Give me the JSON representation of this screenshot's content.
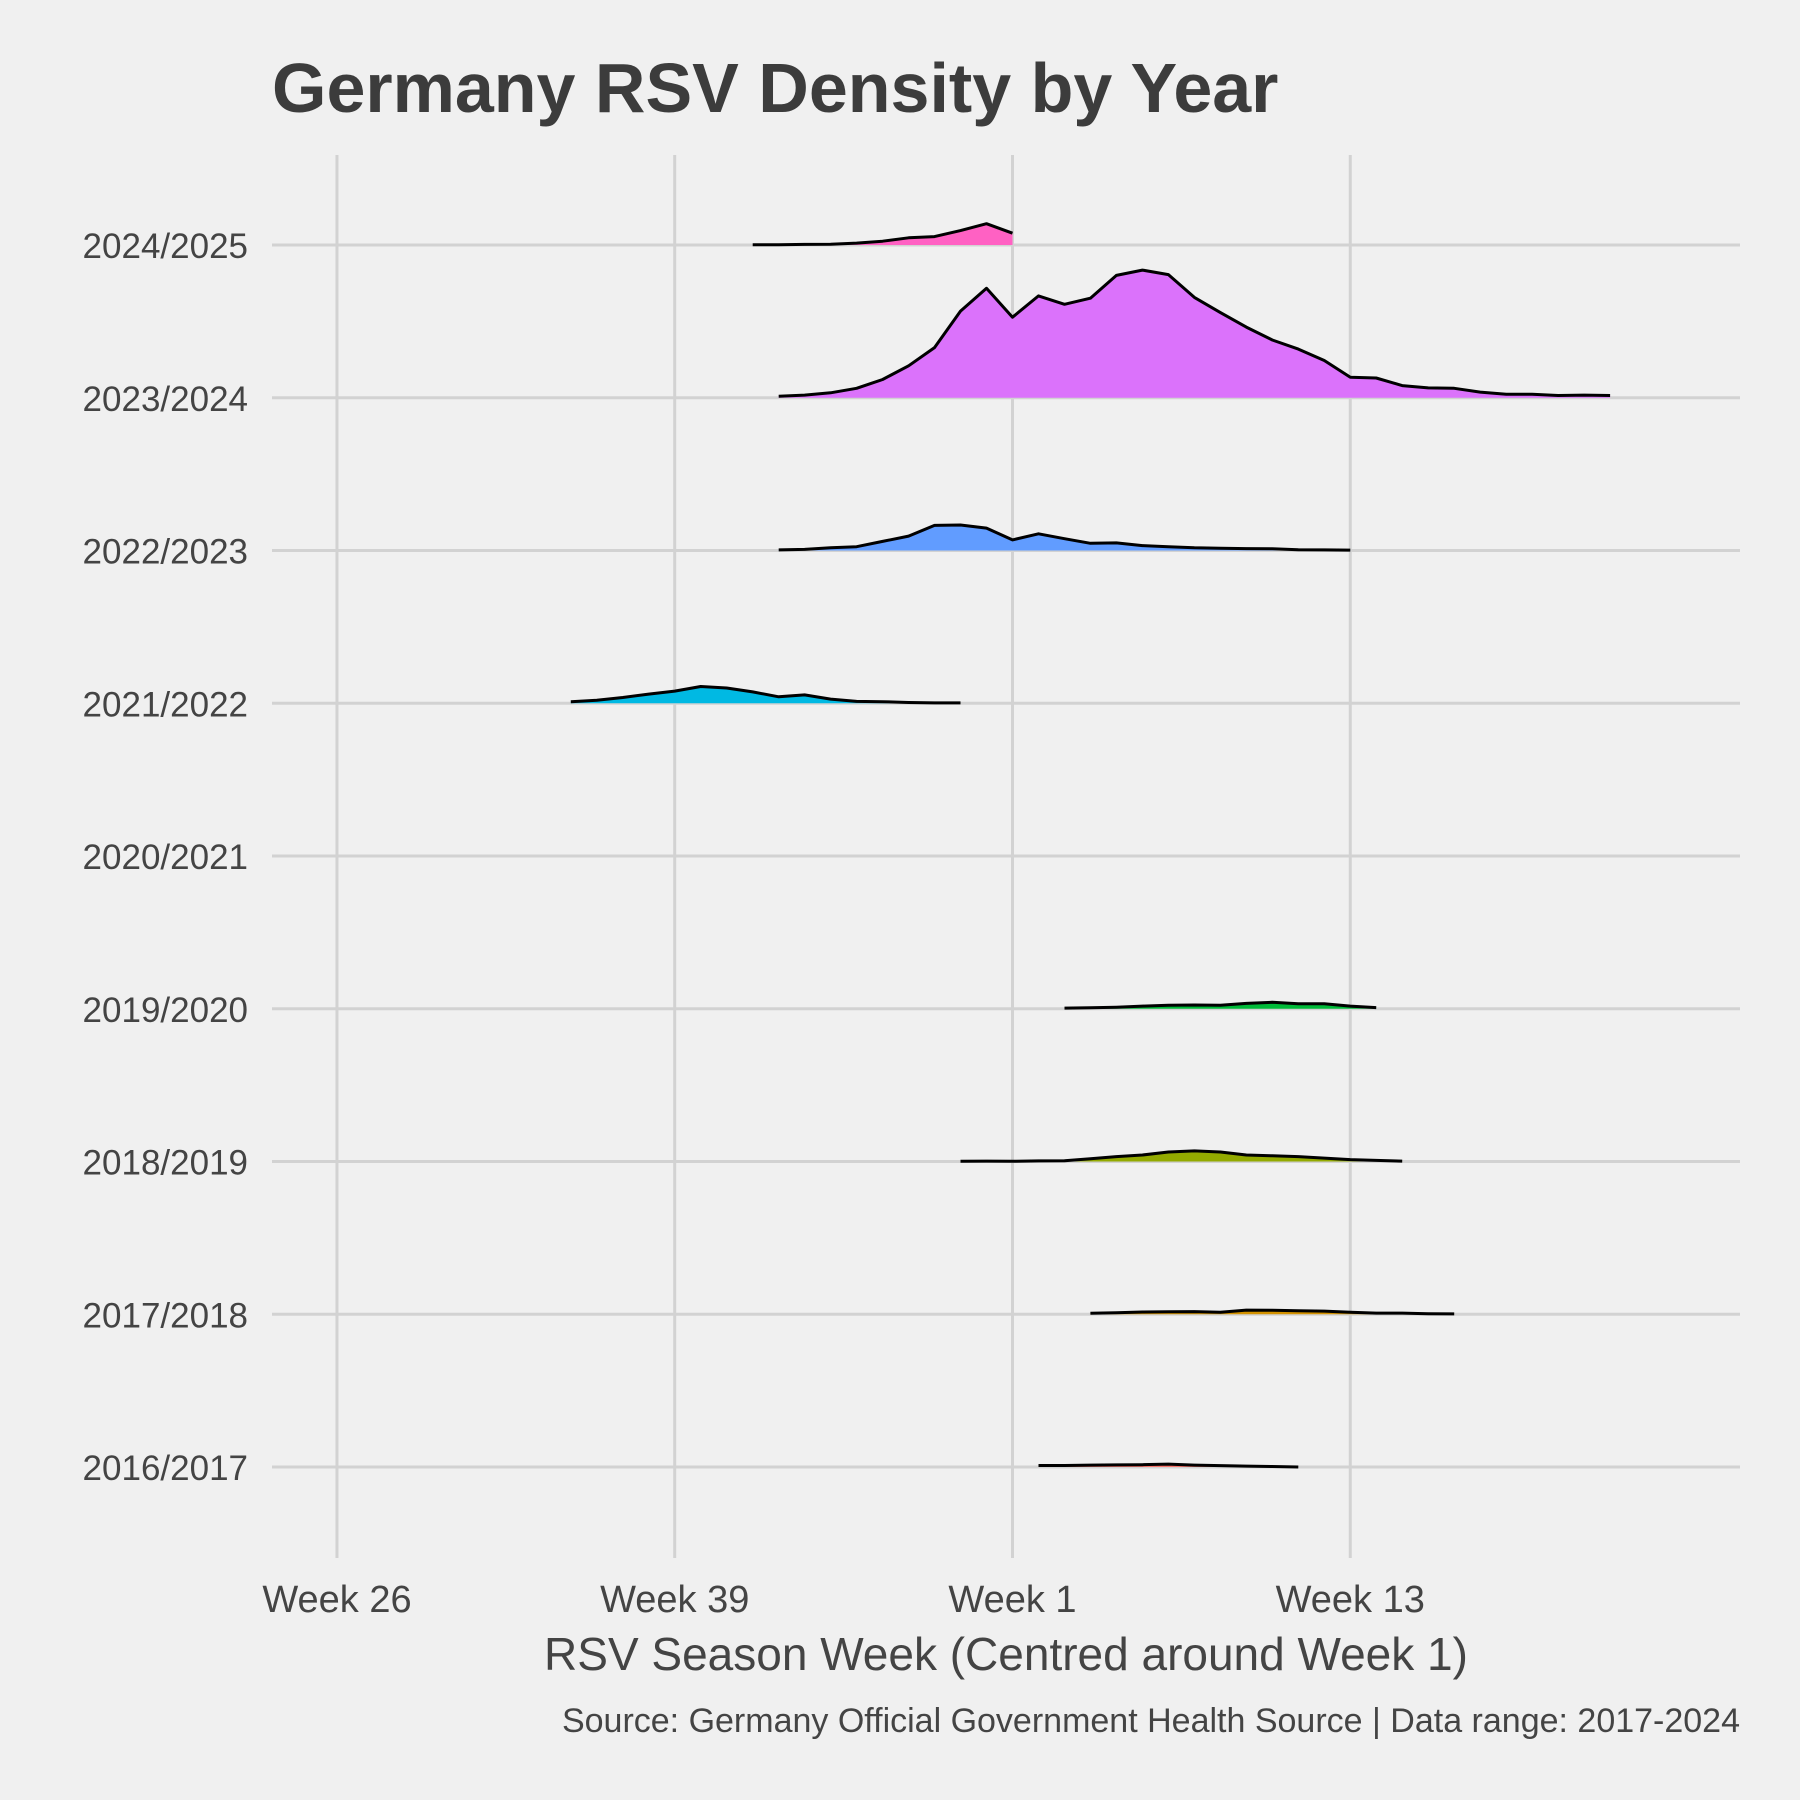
{
  "chart_data": {
    "type": "ridgeline",
    "title": "Germany RSV Density by Year",
    "xlabel": "RSV Season Week (Centred around Week 1)",
    "caption": "Source: Germany Official Government Health Source | Data range: 2017-2024",
    "x_tick_labels": [
      {
        "label": "Week 26",
        "x": -26
      },
      {
        "label": "Week 39",
        "x": -13
      },
      {
        "label": "Week 1",
        "x": 0
      },
      {
        "label": "Week 13",
        "x": 13
      }
    ],
    "xlim": [
      -28.5,
      28
    ],
    "grid": true,
    "legend": "none",
    "series": [
      {
        "name": "2016/2017",
        "color": "#f8766d",
        "x": [
          1,
          2,
          3,
          4,
          5,
          6,
          7,
          8,
          9,
          10,
          11
        ],
        "y": [
          0.2,
          0.2,
          0.25,
          0.27,
          0.3,
          0.38,
          0.25,
          0.18,
          0.12,
          0.06,
          0.0
        ]
      },
      {
        "name": "2017/2018",
        "color": "#d39200",
        "x": [
          3,
          4,
          5,
          6,
          7,
          8,
          9,
          10,
          11,
          12,
          13,
          14,
          15,
          16,
          17
        ],
        "y": [
          0.12,
          0.2,
          0.3,
          0.33,
          0.35,
          0.25,
          0.55,
          0.52,
          0.45,
          0.42,
          0.25,
          0.15,
          0.15,
          0.07,
          0.05
        ]
      },
      {
        "name": "2018/2019",
        "color": "#93aa00",
        "x": [
          -2,
          -1,
          0,
          1,
          2,
          3,
          4,
          5,
          6,
          7,
          8,
          9,
          10,
          11,
          12,
          13,
          14,
          15
        ],
        "y": [
          0.03,
          0.05,
          0.03,
          0.08,
          0.1,
          0.35,
          0.65,
          0.85,
          1.25,
          1.4,
          1.25,
          0.85,
          0.75,
          0.65,
          0.45,
          0.25,
          0.15,
          0.05
        ]
      },
      {
        "name": "2019/2020",
        "color": "#00ba38",
        "x": [
          2,
          3,
          4,
          5,
          6,
          7,
          8,
          9,
          10,
          11,
          12,
          13,
          14
        ],
        "y": [
          0.08,
          0.12,
          0.2,
          0.35,
          0.45,
          0.5,
          0.45,
          0.7,
          0.85,
          0.65,
          0.65,
          0.35,
          0.15
        ]
      },
      {
        "name": "2020/2021",
        "color": "#00c19f",
        "x": [],
        "y": []
      },
      {
        "name": "2021/2022",
        "color": "#00b9e3",
        "x": [
          -17,
          -16,
          -15,
          -14,
          -13,
          -12,
          -11,
          -10,
          -9,
          -8,
          -7,
          -6,
          -5,
          -4,
          -3,
          -2
        ],
        "y": [
          0.2,
          0.4,
          0.75,
          1.2,
          1.6,
          2.2,
          2.0,
          1.5,
          0.85,
          1.1,
          0.55,
          0.25,
          0.2,
          0.1,
          0.05,
          0.05
        ]
      },
      {
        "name": "2022/2023",
        "color": "#619cff",
        "x": [
          -9,
          -8,
          -7,
          -6,
          -5,
          -4,
          -3,
          -2,
          -1,
          0,
          1,
          2,
          3,
          4,
          5,
          6,
          7,
          8,
          9,
          10,
          11,
          12,
          13
        ],
        "y": [
          0.08,
          0.15,
          0.35,
          0.5,
          1.2,
          1.9,
          3.3,
          3.35,
          2.95,
          1.4,
          2.2,
          1.55,
          0.95,
          1.0,
          0.65,
          0.5,
          0.35,
          0.3,
          0.25,
          0.22,
          0.1,
          0.08,
          0.05
        ]
      },
      {
        "name": "2023/2024",
        "color": "#db72fb",
        "x": [
          -9,
          -8,
          -7,
          -6,
          -5,
          -4,
          -3,
          -2,
          -1,
          0,
          1,
          2,
          3,
          4,
          5,
          6,
          7,
          8,
          9,
          10,
          11,
          12,
          13,
          14,
          15,
          16,
          17,
          18,
          19,
          20,
          21,
          22,
          23
        ],
        "y": [
          0.2,
          0.35,
          0.65,
          1.25,
          2.4,
          4.2,
          6.6,
          11.4,
          14.4,
          10.6,
          13.4,
          12.3,
          13.1,
          16.1,
          16.8,
          16.2,
          13.2,
          11.2,
          9.3,
          7.6,
          6.4,
          4.9,
          2.7,
          2.6,
          1.6,
          1.3,
          1.25,
          0.75,
          0.45,
          0.45,
          0.3,
          0.35,
          0.3
        ]
      },
      {
        "name": "2024/2025",
        "color": "#ff61c3",
        "x": [
          -10,
          -9,
          -8,
          -7,
          -6,
          -5,
          -4,
          -3,
          -2,
          -1,
          0
        ],
        "y": [
          0.02,
          0.03,
          0.08,
          0.1,
          0.25,
          0.5,
          0.95,
          1.1,
          1.9,
          2.8,
          1.55
        ]
      }
    ]
  }
}
